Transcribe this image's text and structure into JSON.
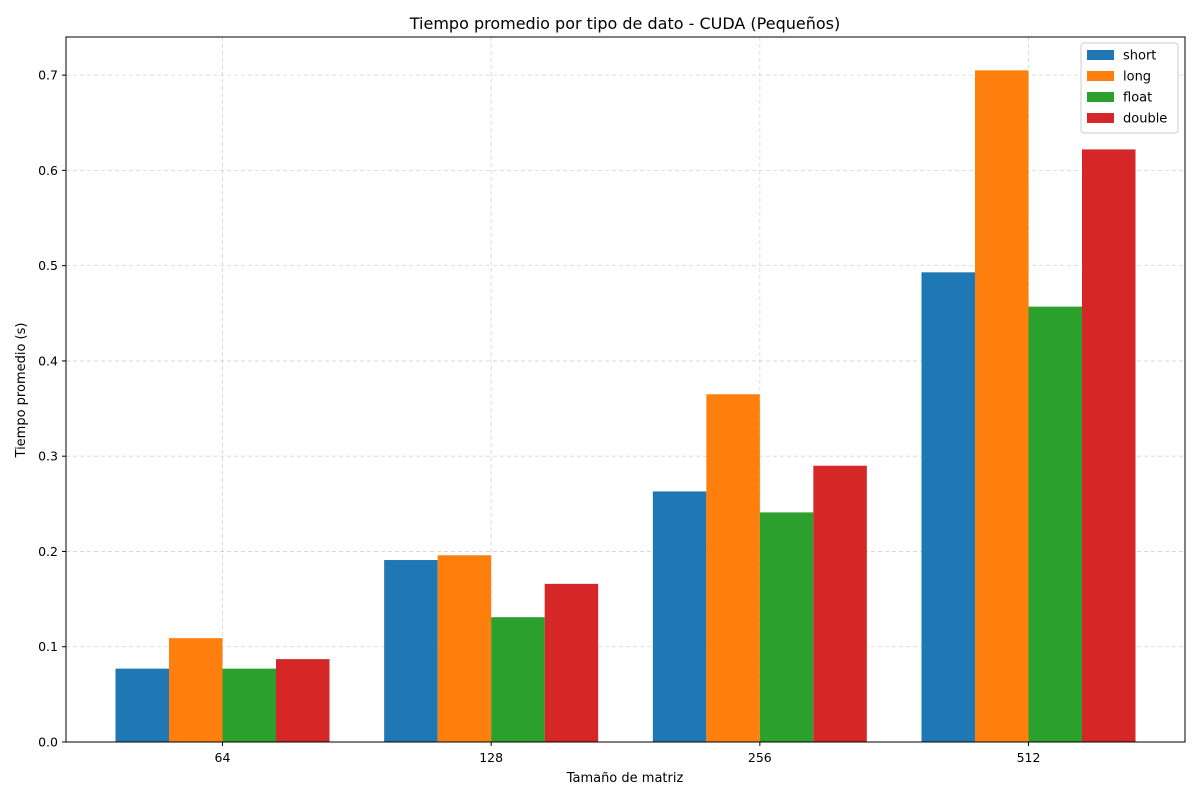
{
  "chart_data": {
    "type": "bar",
    "title": "Tiempo promedio por tipo de dato - CUDA (Pequeños)",
    "xlabel": "Tamaño de matriz",
    "ylabel": "Tiempo promedio (s)",
    "categories": [
      "64",
      "128",
      "256",
      "512"
    ],
    "yticks": [
      "0.0",
      "0.1",
      "0.2",
      "0.3",
      "0.4",
      "0.5",
      "0.6",
      "0.7"
    ],
    "ylim": [
      0,
      0.74
    ],
    "grid": true,
    "legend_position": "top-right",
    "series": [
      {
        "name": "short",
        "color": "#1f77b4",
        "values": [
          0.077,
          0.191,
          0.263,
          0.493
        ]
      },
      {
        "name": "long",
        "color": "#ff7f0e",
        "values": [
          0.109,
          0.196,
          0.365,
          0.705
        ]
      },
      {
        "name": "float",
        "color": "#2ca02c",
        "values": [
          0.077,
          0.131,
          0.241,
          0.457
        ]
      },
      {
        "name": "double",
        "color": "#d62728",
        "values": [
          0.087,
          0.166,
          0.29,
          0.622
        ]
      }
    ]
  }
}
